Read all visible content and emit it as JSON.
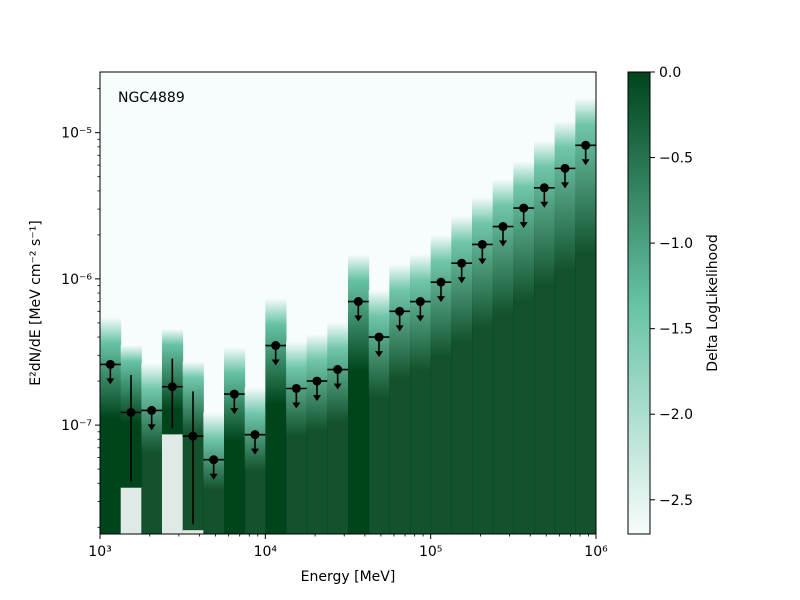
{
  "chart_data": {
    "type": "scatter",
    "annotation": "NGC4889",
    "xlabel": "Energy [MeV]",
    "ylabel": "E²dN/dE [MeV cm⁻² s⁻¹]",
    "xscale": "log",
    "yscale": "log",
    "xlim": [
      1000,
      1000000
    ],
    "ylim": [
      1.8e-08,
      2.6e-05
    ],
    "x_ticks": [
      {
        "value": 1000,
        "label": "10³"
      },
      {
        "value": 10000,
        "label": "10⁴"
      },
      {
        "value": 100000,
        "label": "10⁵"
      },
      {
        "value": 1000000,
        "label": "10⁶"
      }
    ],
    "y_ticks": [
      {
        "value": 1e-07,
        "label": "10⁻⁷"
      },
      {
        "value": 1e-06,
        "label": "10⁻⁶"
      },
      {
        "value": 1e-05,
        "label": "10⁻⁵"
      }
    ],
    "bins": [
      {
        "emin": 1000,
        "emax": 1334,
        "ec": 1155,
        "y": 2.6e-07,
        "ul": true,
        "lo": null,
        "hi": null,
        "ds": 0.6
      },
      {
        "emin": 1334,
        "emax": 1778,
        "ec": 1540,
        "y": 1.22e-07,
        "ul": false,
        "lo": 4.1e-08,
        "hi": 2.2e-07,
        "ds": 0.55
      },
      {
        "emin": 1778,
        "emax": 2371,
        "ec": 2053,
        "y": 1.26e-07,
        "ul": true,
        "lo": null,
        "hi": null,
        "ds": 0.3
      },
      {
        "emin": 2371,
        "emax": 3162,
        "ec": 2738,
        "y": 1.83e-07,
        "ul": false,
        "lo": 9.5e-08,
        "hi": 2.85e-07,
        "ds": 0.6
      },
      {
        "emin": 3162,
        "emax": 4217,
        "ec": 3652,
        "y": 8.4e-08,
        "ul": false,
        "lo": 2.1e-08,
        "hi": 1.7e-07,
        "ds": 0.35
      },
      {
        "emin": 4217,
        "emax": 5623,
        "ec": 4870,
        "y": 5.8e-08,
        "ul": true,
        "lo": null,
        "hi": null,
        "ds": 0.4
      },
      {
        "emin": 5623,
        "emax": 7499,
        "ec": 6494,
        "y": 1.63e-07,
        "ul": true,
        "lo": null,
        "hi": null,
        "ds": 0.6
      },
      {
        "emin": 7499,
        "emax": 10000,
        "ec": 8660,
        "y": 8.6e-08,
        "ul": true,
        "lo": null,
        "hi": null,
        "ds": 0.35
      },
      {
        "emin": 10000,
        "emax": 13335,
        "ec": 11548,
        "y": 3.5e-07,
        "ul": true,
        "lo": null,
        "hi": null,
        "ds": 0.6
      },
      {
        "emin": 13335,
        "emax": 17783,
        "ec": 15399,
        "y": 1.78e-07,
        "ul": true,
        "lo": null,
        "hi": null,
        "ds": 0.3
      },
      {
        "emin": 17783,
        "emax": 23714,
        "ec": 20535,
        "y": 2e-07,
        "ul": true,
        "lo": null,
        "hi": null,
        "ds": 0.3
      },
      {
        "emin": 23714,
        "emax": 31623,
        "ec": 27384,
        "y": 2.4e-07,
        "ul": true,
        "lo": null,
        "hi": null,
        "ds": 0.3
      },
      {
        "emin": 31623,
        "emax": 42170,
        "ec": 36517,
        "y": 7e-07,
        "ul": true,
        "lo": null,
        "hi": null,
        "ds": 0.6
      },
      {
        "emin": 42170,
        "emax": 56234,
        "ec": 48697,
        "y": 4e-07,
        "ul": true,
        "lo": null,
        "hi": null,
        "ds": 0.35
      },
      {
        "emin": 56234,
        "emax": 74989,
        "ec": 64938,
        "y": 6e-07,
        "ul": true,
        "lo": null,
        "hi": null,
        "ds": 0.3
      },
      {
        "emin": 74989,
        "emax": 100000,
        "ec": 86596,
        "y": 7e-07,
        "ul": true,
        "lo": null,
        "hi": null,
        "ds": 0.3
      },
      {
        "emin": 100000,
        "emax": 133352,
        "ec": 115478,
        "y": 9.5e-07,
        "ul": true,
        "lo": null,
        "hi": null,
        "ds": 0.3
      },
      {
        "emin": 133352,
        "emax": 177828,
        "ec": 153993,
        "y": 1.28e-06,
        "ul": true,
        "lo": null,
        "hi": null,
        "ds": 0.3
      },
      {
        "emin": 177828,
        "emax": 237137,
        "ec": 205353,
        "y": 1.72e-06,
        "ul": true,
        "lo": null,
        "hi": null,
        "ds": 0.3
      },
      {
        "emin": 237137,
        "emax": 316228,
        "ec": 273842,
        "y": 2.28e-06,
        "ul": true,
        "lo": null,
        "hi": null,
        "ds": 0.3
      },
      {
        "emin": 316228,
        "emax": 421697,
        "ec": 365174,
        "y": 3.05e-06,
        "ul": true,
        "lo": null,
        "hi": null,
        "ds": 0.3
      },
      {
        "emin": 421697,
        "emax": 562341,
        "ec": 486968,
        "y": 4.2e-06,
        "ul": true,
        "lo": null,
        "hi": null,
        "ds": 0.3
      },
      {
        "emin": 562341,
        "emax": 749894,
        "ec": 649382,
        "y": 5.7e-06,
        "ul": true,
        "lo": null,
        "hi": null,
        "ds": 0.3
      },
      {
        "emin": 749894,
        "emax": 1000000,
        "ec": 865964,
        "y": 8.2e-06,
        "ul": true,
        "lo": null,
        "hi": null,
        "ds": 0.3
      }
    ],
    "colorbar": {
      "label": "Delta LogLikelihood",
      "range": [
        -2.7,
        0.0
      ],
      "ticks": [
        {
          "value": 0.0,
          "label": "0.0"
        },
        {
          "value": -0.5,
          "label": "−0.5"
        },
        {
          "value": -1.0,
          "label": "−1.0"
        },
        {
          "value": -1.5,
          "label": "−1.5"
        },
        {
          "value": -2.0,
          "label": "−2.0"
        },
        {
          "value": -2.5,
          "label": "−2.5"
        }
      ],
      "colors": {
        "low": "#f7fcfd",
        "mid": "#66c2a4",
        "high": "#00441b"
      }
    }
  }
}
